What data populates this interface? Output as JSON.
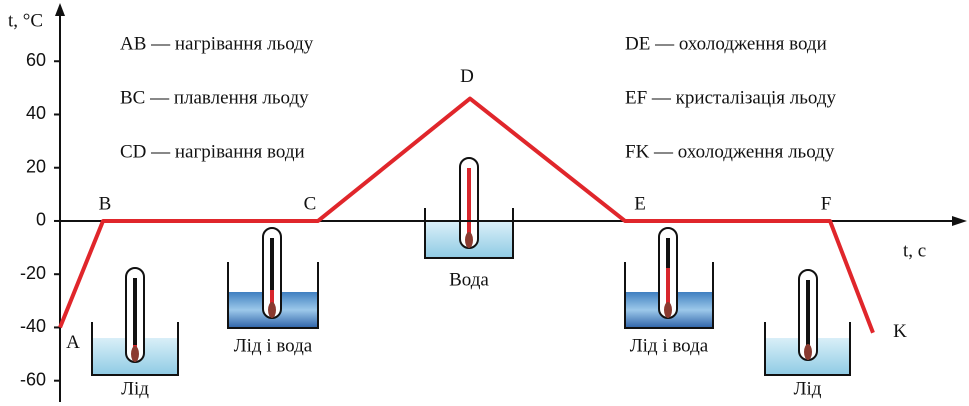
{
  "chart_data": {
    "type": "line",
    "y_label": "t, °C",
    "x_label": "t, с",
    "ylim": [
      -65,
      80
    ],
    "yticks": [
      -60,
      -40,
      -20,
      0,
      20,
      40,
      60
    ],
    "xlim": [
      0,
      910
    ],
    "points": [
      "A",
      "B",
      "C",
      "D",
      "E",
      "F",
      "K"
    ],
    "series": [
      {
        "color": "#e0262b",
        "x": [
          0,
          43,
          258,
          410,
          565,
          770,
          813
        ],
        "values": [
          -40,
          0,
          0,
          46,
          0,
          0,
          -42
        ]
      }
    ],
    "legend": [
      "AB — нагрівання льоду",
      "BC — плавлення льоду",
      "CD — нагрівання води",
      "DE — охолодження води",
      "EF — кристалізація льоду",
      "FK — охолодження льоду"
    ],
    "vessels": [
      "Лід",
      "Лід і вода",
      "Вода",
      "Лід і вода",
      "Лід"
    ]
  }
}
